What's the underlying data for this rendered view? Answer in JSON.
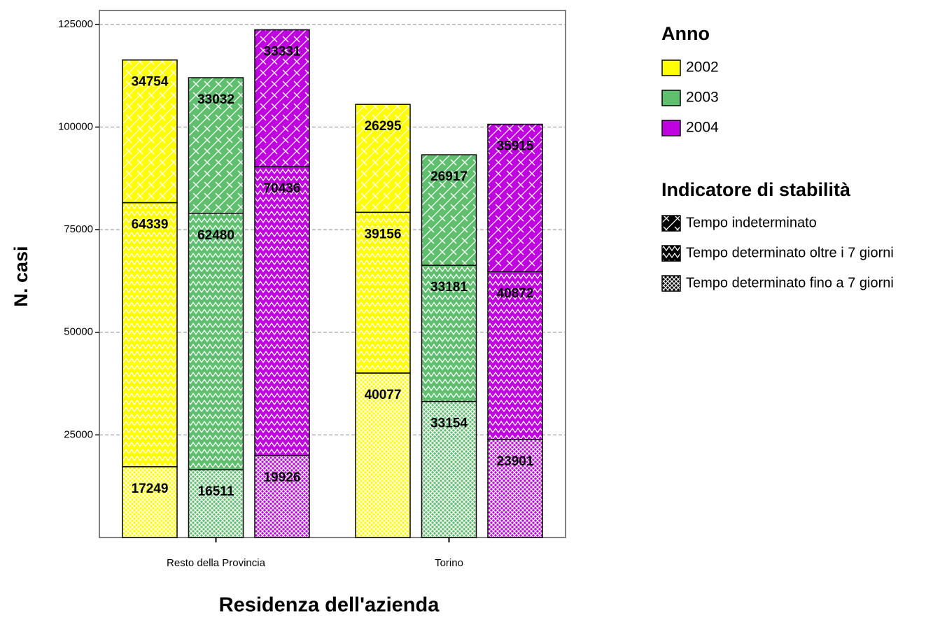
{
  "chart_data": {
    "type": "bar",
    "stacked": true,
    "x_label": "Residenza dell'azienda",
    "y_label": "N. casi",
    "categories": [
      "Resto della Provincia",
      "Torino"
    ],
    "ylim": [
      0,
      128400
    ],
    "yticks": [
      25000,
      50000,
      75000,
      100000,
      125000
    ],
    "grid": true,
    "legend_position": "right",
    "series_title": "Anno",
    "series": [
      {
        "name": "2002",
        "color": "#ffff00",
        "values": [
          [
            34754,
            64339,
            17249
          ],
          [
            26295,
            39156,
            40077
          ]
        ]
      },
      {
        "name": "2003",
        "color": "#5fbf6f",
        "values": [
          [
            33032,
            62480,
            16511
          ],
          [
            26917,
            33181,
            33154
          ]
        ]
      },
      {
        "name": "2004",
        "color": "#c000e0",
        "values": [
          [
            33331,
            70436,
            19926
          ],
          [
            35915,
            40872,
            23901
          ]
        ]
      }
    ],
    "segments_title": "Indicatore di stabilità",
    "segments": [
      {
        "name": "Tempo indeterminato",
        "pattern": "diagonal"
      },
      {
        "name": "Tempo determinato oltre i 7 giorni",
        "pattern": "zigzag"
      },
      {
        "name": "Tempo determinato fino a 7 giorni",
        "pattern": "crosshatch"
      }
    ]
  }
}
